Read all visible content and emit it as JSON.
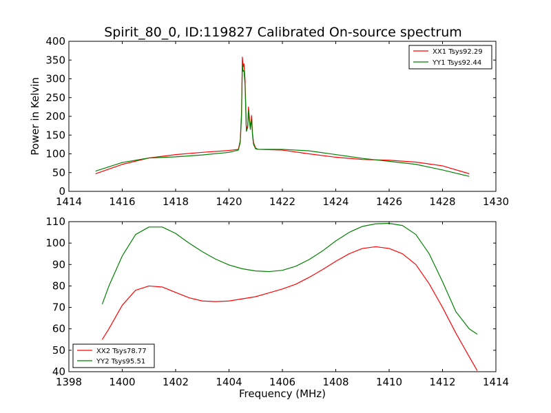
{
  "chart_data": [
    {
      "type": "line",
      "title": "Spirit_80_0, ID:119827 Calibrated On-source spectrum",
      "xlabel": "",
      "ylabel": "Power in Kelvin",
      "xlim": [
        1414,
        1430
      ],
      "ylim": [
        0,
        400
      ],
      "xticks": [
        1414,
        1416,
        1418,
        1420,
        1422,
        1424,
        1426,
        1428,
        1430
      ],
      "yticks": [
        0,
        50,
        100,
        150,
        200,
        250,
        300,
        350,
        400
      ],
      "legend": "top-right",
      "grid": false,
      "series": [
        {
          "name": "XX1 Tsys92.29",
          "color": "#ff0000",
          "x": [
            1415.0,
            1416.0,
            1417.0,
            1418.0,
            1419.0,
            1420.0,
            1420.35,
            1420.42,
            1420.47,
            1420.5,
            1420.53,
            1420.56,
            1420.6,
            1420.65,
            1420.7,
            1420.73,
            1420.76,
            1420.8,
            1420.85,
            1420.88,
            1420.92,
            1421.0,
            1421.1,
            1422.0,
            1423.0,
            1424.0,
            1425.0,
            1426.0,
            1427.0,
            1428.0,
            1429.0
          ],
          "y": [
            47,
            72,
            89,
            98,
            104,
            109,
            112,
            135,
            210,
            358,
            332,
            340,
            300,
            165,
            175,
            225,
            200,
            170,
            202,
            155,
            130,
            115,
            112,
            110,
            100,
            91,
            85,
            83,
            78,
            68,
            47
          ]
        },
        {
          "name": "YY1 Tsys92.44",
          "color": "#008000",
          "x": [
            1415.0,
            1416.0,
            1417.0,
            1418.0,
            1419.0,
            1420.0,
            1420.35,
            1420.42,
            1420.47,
            1420.5,
            1420.53,
            1420.56,
            1420.6,
            1420.65,
            1420.7,
            1420.73,
            1420.76,
            1420.8,
            1420.85,
            1420.88,
            1420.92,
            1421.0,
            1421.1,
            1422.0,
            1423.0,
            1424.0,
            1425.0,
            1426.0,
            1427.0,
            1428.0,
            1429.0
          ],
          "y": [
            54,
            77,
            89,
            92,
            97,
            104,
            110,
            130,
            200,
            338,
            320,
            322,
            285,
            160,
            170,
            215,
            190,
            165,
            193,
            150,
            125,
            113,
            112,
            112,
            108,
            98,
            88,
            80,
            72,
            57,
            40
          ]
        }
      ]
    },
    {
      "type": "line",
      "title": "",
      "xlabel": "Frequency (MHz)",
      "ylabel": "",
      "xlim": [
        1398,
        1414
      ],
      "ylim": [
        40,
        110
      ],
      "xticks": [
        1398,
        1400,
        1402,
        1404,
        1406,
        1408,
        1410,
        1412,
        1414
      ],
      "yticks": [
        40,
        50,
        60,
        70,
        80,
        90,
        100,
        110
      ],
      "legend": "bottom-left",
      "grid": false,
      "series": [
        {
          "name": "XX2 Tsys78.77",
          "color": "#ff0000",
          "x": [
            1399.25,
            1399.5,
            1400.0,
            1400.5,
            1401.0,
            1401.5,
            1402.0,
            1402.5,
            1403.0,
            1403.5,
            1404.0,
            1404.5,
            1405.0,
            1405.5,
            1406.0,
            1406.5,
            1407.0,
            1407.5,
            1408.0,
            1408.5,
            1409.0,
            1409.5,
            1410.0,
            1410.5,
            1411.0,
            1411.5,
            1412.0,
            1412.5,
            1413.0,
            1413.3
          ],
          "y": [
            55,
            60,
            71,
            78,
            80,
            79.5,
            77,
            74.5,
            73,
            72.7,
            73,
            74,
            75,
            76.8,
            78.6,
            80.8,
            84,
            87.6,
            91.5,
            95,
            97.5,
            98.3,
            97.5,
            95,
            90,
            81,
            70,
            58,
            47,
            40.5
          ]
        },
        {
          "name": "YY2 Tsys95.51",
          "color": "#008000",
          "x": [
            1399.25,
            1399.5,
            1400.0,
            1400.5,
            1401.0,
            1401.5,
            1402.0,
            1402.5,
            1403.0,
            1403.5,
            1404.0,
            1404.5,
            1405.0,
            1405.5,
            1406.0,
            1406.5,
            1407.0,
            1407.5,
            1408.0,
            1408.5,
            1409.0,
            1409.5,
            1410.0,
            1410.5,
            1411.0,
            1411.5,
            1412.0,
            1412.5,
            1413.0,
            1413.3
          ],
          "y": [
            71.5,
            80,
            94,
            104,
            107.5,
            107.5,
            104.5,
            100,
            96,
            92.5,
            89.8,
            88,
            87,
            86.7,
            87.3,
            89.2,
            92.3,
            96.3,
            101,
            105,
            107.8,
            109,
            109.2,
            108.2,
            104,
            95,
            82,
            68,
            60,
            57.5
          ]
        }
      ]
    }
  ]
}
